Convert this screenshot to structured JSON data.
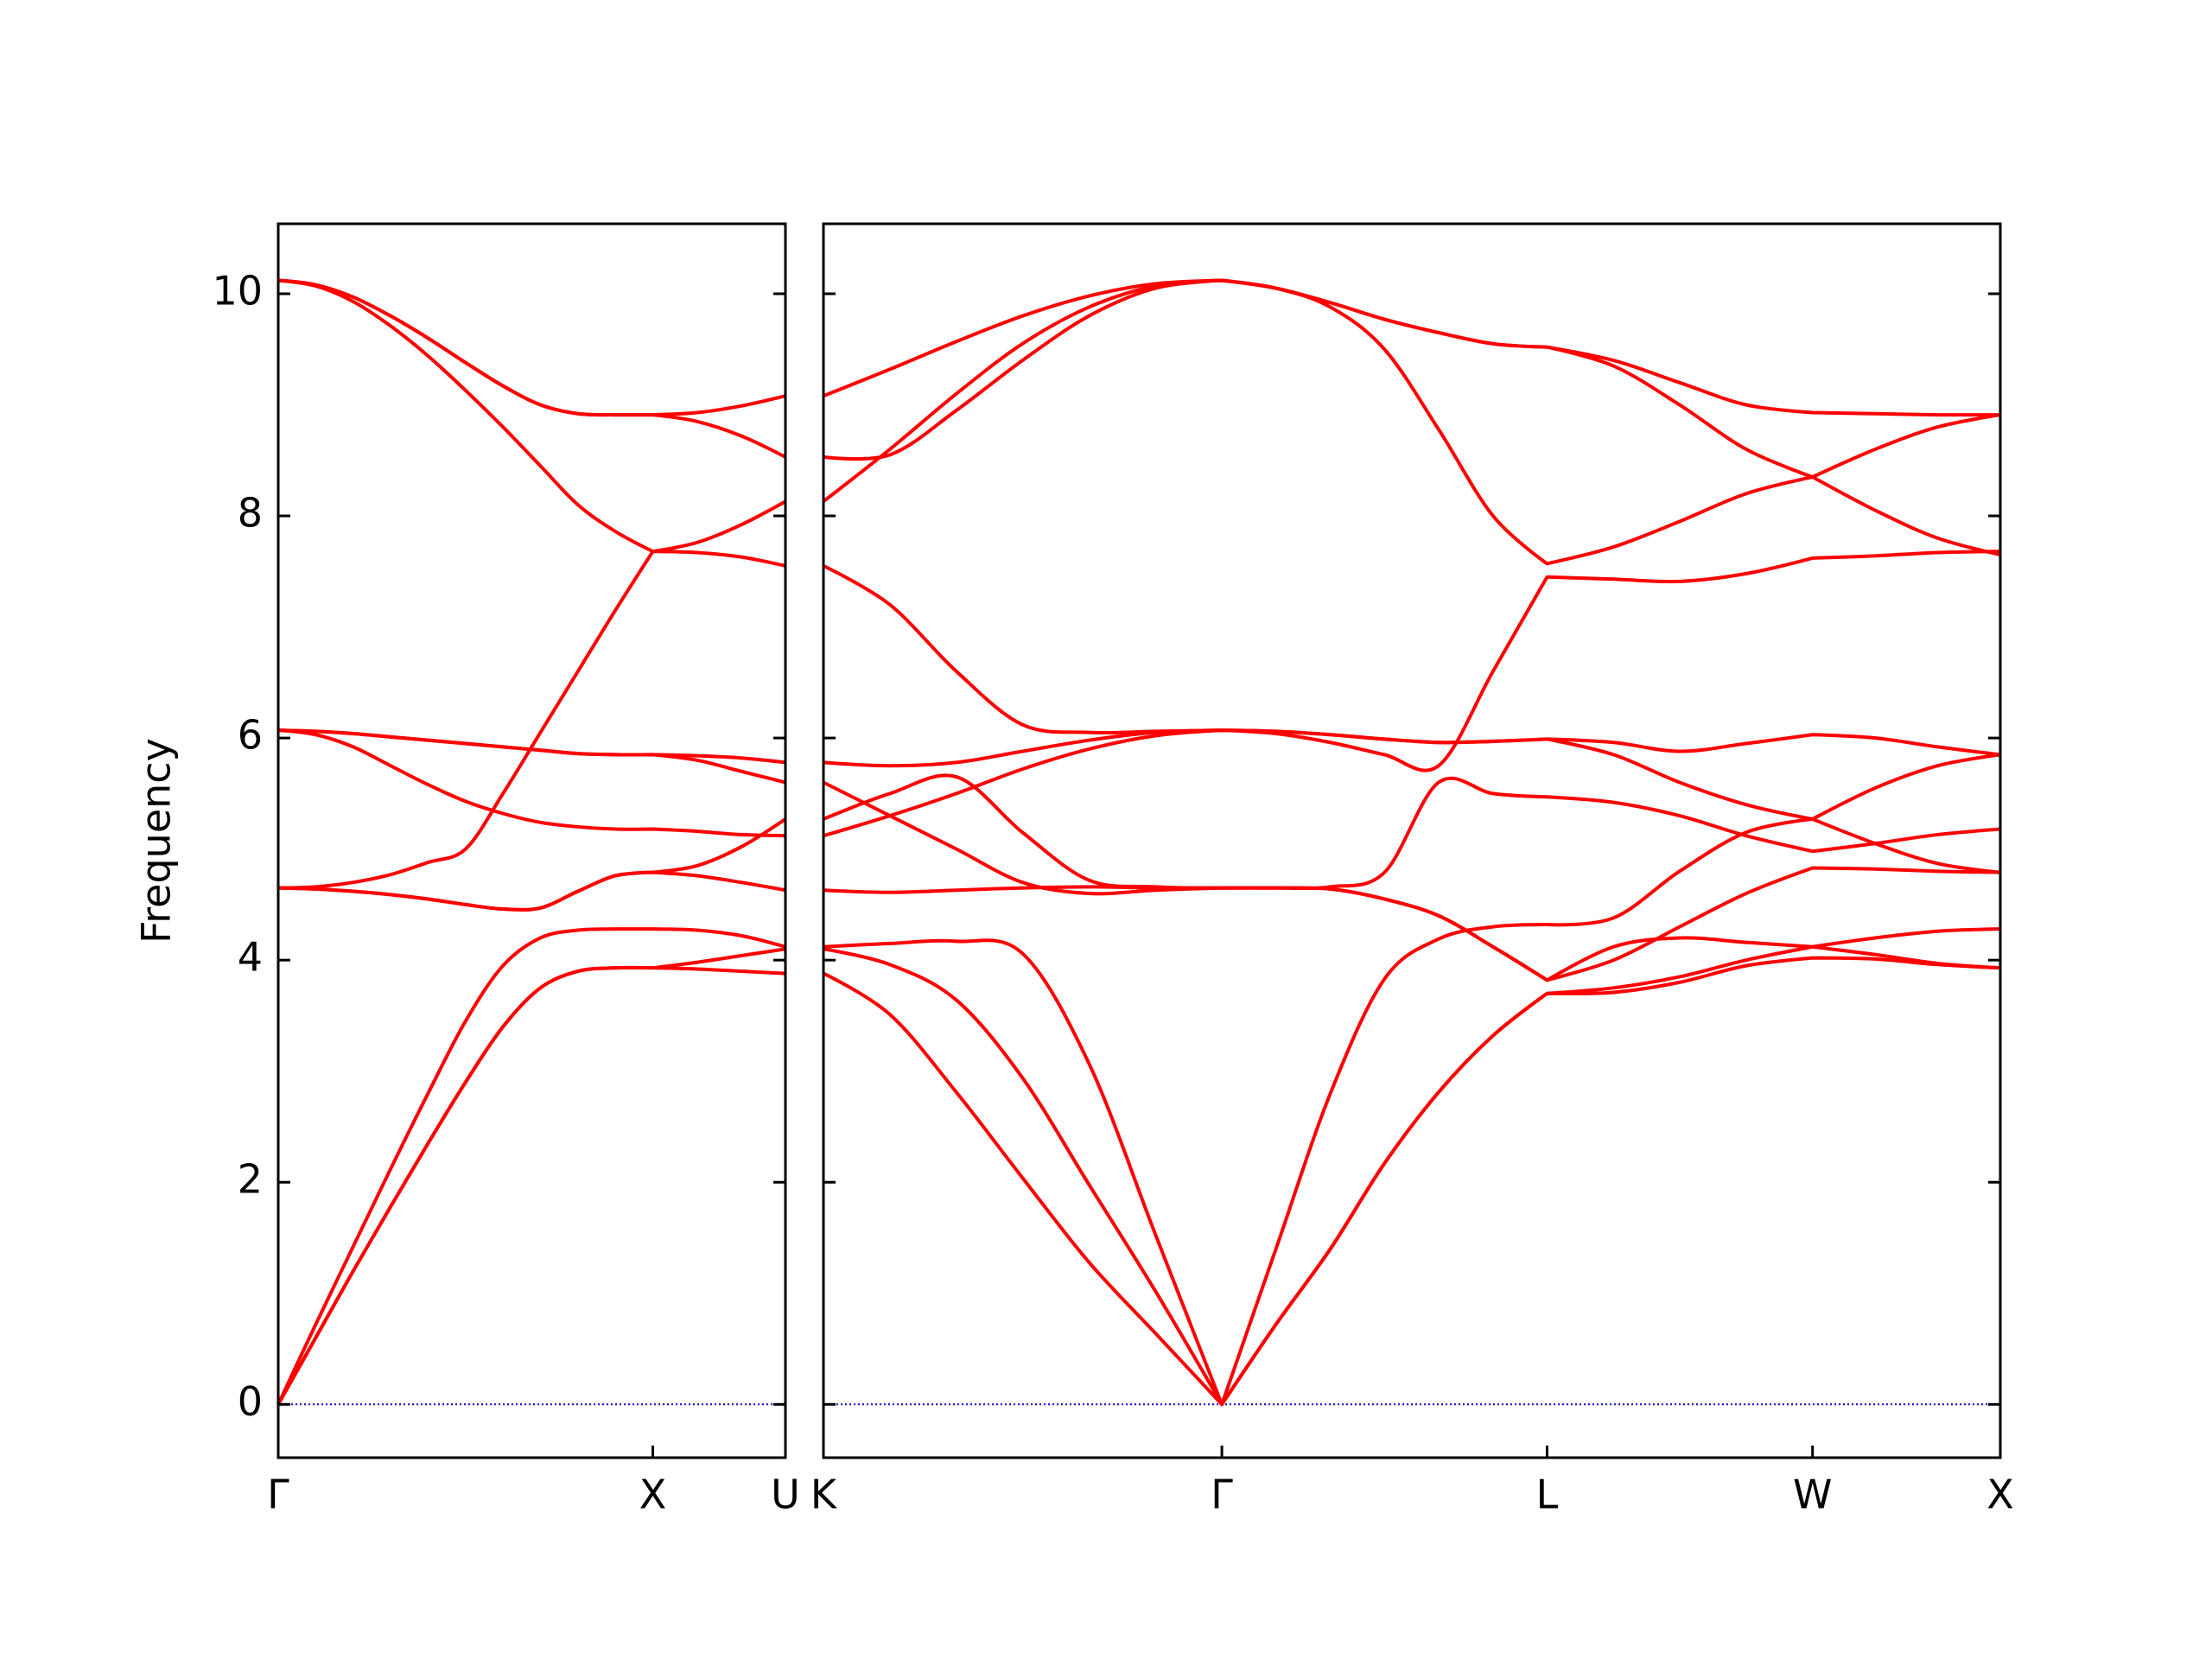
{
  "chart_data": [
    {
      "type": "line",
      "ylabel": "Frequency",
      "color": "#ff0000",
      "hline": 0,
      "hline_color": "#0000cc",
      "xlim": [
        0,
        1.354
      ],
      "ylim": [
        -0.48,
        10.63
      ],
      "yticks": [
        0,
        2,
        4,
        6,
        8,
        10
      ],
      "xticks": [
        {
          "value": 0,
          "label": "Γ"
        },
        {
          "value": 1,
          "label": "X"
        },
        {
          "value": 1.354,
          "label": "U"
        }
      ],
      "x": [
        0,
        0.1,
        0.2,
        0.3,
        0.4,
        0.5,
        0.6,
        0.7,
        0.8,
        0.9,
        1,
        1.118,
        1.236,
        1.354
      ],
      "series": [
        {
          "values": [
            0,
            0.6,
            1.2,
            1.78,
            2.35,
            2.9,
            3.4,
            3.75,
            3.9,
            3.93,
            3.93,
            3.98,
            4.04,
            4.1
          ]
        },
        {
          "values": [
            0,
            0.6,
            1.2,
            1.78,
            2.35,
            2.9,
            3.4,
            3.75,
            3.9,
            3.93,
            3.93,
            3.92,
            3.9,
            3.88
          ]
        },
        {
          "values": [
            0,
            0.72,
            1.42,
            2.12,
            2.8,
            3.45,
            3.95,
            4.2,
            4.27,
            4.28,
            4.28,
            4.27,
            4.22,
            4.12
          ]
        },
        {
          "values": [
            4.65,
            4.64,
            4.62,
            4.59,
            4.55,
            4.5,
            4.46,
            4.47,
            4.62,
            4.76,
            4.79,
            4.85,
            5.02,
            5.27
          ]
        },
        {
          "values": [
            4.65,
            4.64,
            4.62,
            4.59,
            4.55,
            4.5,
            4.46,
            4.47,
            4.62,
            4.76,
            4.79,
            4.76,
            4.7,
            4.63
          ]
        },
        {
          "values": [
            4.65,
            4.66,
            4.7,
            4.77,
            4.88,
            5.0,
            5.5,
            6.05,
            6.6,
            7.15,
            7.68,
            7.76,
            7.92,
            8.13
          ]
        },
        {
          "values": [
            6.07,
            6.03,
            5.92,
            5.75,
            5.58,
            5.43,
            5.32,
            5.24,
            5.2,
            5.18,
            5.18,
            5.16,
            5.13,
            5.12
          ]
        },
        {
          "values": [
            6.07,
            6.06,
            6.04,
            6.01,
            5.98,
            5.95,
            5.92,
            5.89,
            5.86,
            5.85,
            5.85,
            5.84,
            5.82,
            5.78
          ]
        },
        {
          "values": [
            6.07,
            6.06,
            6.04,
            6.01,
            5.98,
            5.95,
            5.92,
            5.89,
            5.86,
            5.85,
            5.85,
            5.8,
            5.7,
            5.6
          ]
        },
        {
          "values": [
            10.12,
            10.07,
            9.93,
            9.71,
            9.44,
            9.13,
            8.8,
            8.45,
            8.1,
            7.86,
            7.68,
            7.67,
            7.63,
            7.55
          ]
        },
        {
          "values": [
            10.12,
            10.08,
            9.97,
            9.8,
            9.6,
            9.38,
            9.17,
            9.0,
            8.92,
            8.91,
            8.91,
            8.93,
            8.99,
            9.08
          ]
        },
        {
          "values": [
            10.12,
            10.08,
            9.97,
            9.8,
            9.6,
            9.38,
            9.17,
            9.0,
            8.92,
            8.91,
            8.91,
            8.85,
            8.72,
            8.53
          ]
        }
      ]
    },
    {
      "type": "line",
      "color": "#ff0000",
      "hline": 0,
      "hline_color": "#0000cc",
      "xlim": [
        0,
        3.134
      ],
      "ylim": [
        -0.48,
        10.63
      ],
      "xticks": [
        {
          "value": 0,
          "label": "K"
        },
        {
          "value": 1.061,
          "label": "Γ"
        },
        {
          "value": 1.927,
          "label": "L"
        },
        {
          "value": 2.634,
          "label": "W"
        },
        {
          "value": 3.134,
          "label": "X"
        }
      ],
      "x": [
        0,
        0.177,
        0.354,
        0.53,
        0.707,
        0.884,
        1.061,
        1.205,
        1.35,
        1.494,
        1.638,
        1.783,
        1.927,
        2.104,
        2.28,
        2.457,
        2.634,
        2.801,
        2.967,
        3.134
      ],
      "series": [
        {
          "values": [
            9.08,
            9.32,
            9.57,
            9.8,
            9.98,
            10.09,
            10.12,
            10.05,
            9.92,
            9.77,
            9.65,
            9.55,
            9.52,
            9.4,
            9.2,
            9.0,
            8.93,
            8.92,
            8.91,
            8.91
          ]
        },
        {
          "values": [
            8.53,
            8.55,
            8.95,
            9.4,
            9.8,
            10.05,
            10.12,
            10.05,
            9.92,
            9.77,
            9.65,
            9.55,
            9.52,
            9.35,
            9.0,
            8.6,
            8.35,
            8.05,
            7.8,
            7.65
          ]
        },
        {
          "values": [
            8.13,
            8.6,
            9.1,
            9.55,
            9.88,
            10.07,
            10.12,
            10.05,
            9.88,
            9.5,
            8.78,
            8.0,
            7.57,
            7.72,
            7.95,
            8.2,
            8.35,
            8.6,
            8.8,
            8.91
          ]
        },
        {
          "values": [
            7.55,
            7.2,
            6.6,
            6.12,
            6.05,
            6.06,
            6.07,
            6.06,
            6.03,
            5.99,
            5.96,
            5.97,
            5.99,
            5.96,
            5.88,
            5.95,
            6.03,
            6.0,
            5.92,
            5.85
          ]
        },
        {
          "values": [
            5.78,
            5.75,
            5.78,
            5.88,
            5.98,
            6.05,
            6.07,
            6.06,
            6.03,
            5.99,
            5.96,
            5.97,
            5.99,
            5.85,
            5.6,
            5.4,
            5.27,
            5.05,
            4.87,
            4.79
          ]
        },
        {
          "values": [
            5.12,
            5.3,
            5.5,
            5.72,
            5.9,
            6.02,
            6.07,
            6.04,
            5.96,
            5.85,
            5.75,
            6.6,
            7.45,
            7.43,
            7.41,
            7.48,
            7.62,
            7.64,
            7.67,
            7.68
          ]
        },
        {
          "values": [
            5.6,
            5.3,
            5.0,
            4.7,
            4.6,
            4.63,
            4.65,
            4.65,
            4.66,
            4.79,
            5.6,
            5.5,
            5.47,
            5.42,
            5.3,
            5.12,
            4.98,
            5.05,
            5.13,
            5.18
          ]
        },
        {
          "values": [
            5.27,
            5.5,
            5.65,
            5.15,
            4.72,
            4.66,
            4.65,
            4.65,
            4.64,
            4.55,
            4.4,
            4.12,
            3.82,
            4.0,
            4.3,
            4.6,
            4.83,
            4.82,
            4.8,
            4.79
          ]
        },
        {
          "values": [
            4.63,
            4.61,
            4.63,
            4.65,
            4.66,
            4.65,
            4.65,
            4.65,
            4.64,
            4.55,
            4.4,
            4.12,
            3.82,
            4.12,
            4.2,
            4.16,
            4.12,
            4.05,
            3.97,
            3.93
          ]
        },
        {
          "values": [
            4.12,
            4.15,
            4.17,
            4.06,
            3.07,
            1.53,
            0,
            1.4,
            2.8,
            3.83,
            4.19,
            4.3,
            4.32,
            4.38,
            4.8,
            5.15,
            5.27,
            5.55,
            5.75,
            5.85
          ]
        },
        {
          "values": [
            4.1,
            3.96,
            3.64,
            2.94,
            1.98,
            1.02,
            0,
            0.72,
            1.4,
            2.17,
            2.81,
            3.32,
            3.7,
            3.75,
            3.85,
            4.0,
            4.12,
            4.2,
            4.26,
            4.28
          ]
        },
        {
          "values": [
            3.88,
            3.51,
            2.81,
            2.04,
            1.28,
            0.64,
            0,
            0.72,
            1.4,
            2.17,
            2.81,
            3.32,
            3.7,
            3.71,
            3.8,
            3.95,
            4.02,
            4.01,
            3.96,
            3.93
          ]
        }
      ]
    }
  ]
}
